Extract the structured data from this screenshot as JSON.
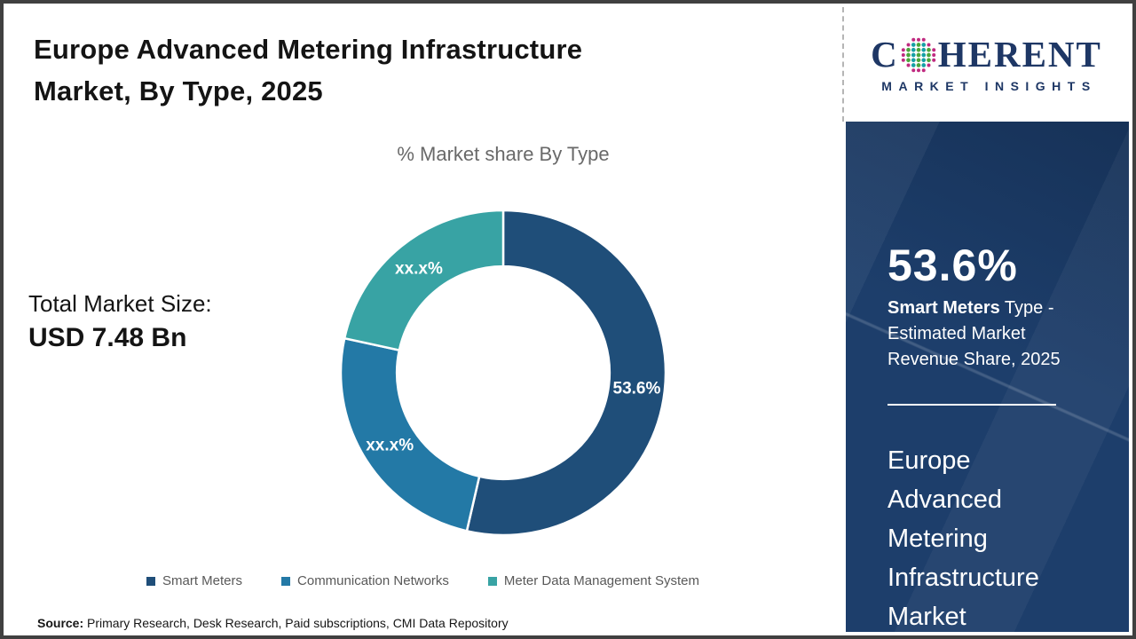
{
  "page": {
    "title_lines": [
      "Europe Advanced Metering Infrastructure",
      "Market, By Type, 2025"
    ]
  },
  "total": {
    "label": "Total Market Size:",
    "value": "USD 7.48 Bn"
  },
  "source": {
    "prefix": "Source:",
    "text": " Primary Research, Desk Research, Paid subscriptions, CMI Data Repository"
  },
  "logo": {
    "first_letter": "C",
    "rest_letters": "HERENT",
    "tagline": "MARKET INSIGHTS"
  },
  "sidebar": {
    "stat_value": "53.6%",
    "stat_highlight": "Smart Meters",
    "stat_rest": " Type - Estimated Market Revenue Share, 2025",
    "market_name_lines": [
      "Europe",
      "Advanced",
      "Metering",
      "Infrastructure",
      "Market"
    ]
  },
  "colors": {
    "panel_navy": "#1d3e6b",
    "logo_navy": "#1e3765",
    "legend_text_gray": "#595959",
    "chart_title_gray": "#696969",
    "globe_dot_magenta": "#c02a80",
    "globe_dot_teal": "#16a0a5",
    "globe_dot_green": "#4aa63c"
  },
  "chart_data": {
    "type": "pie",
    "subtype": "donut",
    "title": "% Market share By Type",
    "categories": [
      "Smart Meters",
      "Communication Networks",
      "Meter Data Management System"
    ],
    "values": [
      53.6,
      24.8,
      21.6
    ],
    "slice_labels": [
      "53.6%",
      "xx.x%",
      "xx.x%"
    ],
    "values_note": "Only the Smart Meters slice value (53.6%) is printed on the chart; the other two slices are masked as xx.x% and their values are estimated from arc angles.",
    "colors": [
      "#1f4e79",
      "#2379a6",
      "#38a3a4"
    ],
    "start_angle_deg": 0,
    "direction": "clockwise",
    "inner_radius_ratio": 0.655,
    "legend_position": "bottom",
    "label_color": "#ffffff"
  }
}
